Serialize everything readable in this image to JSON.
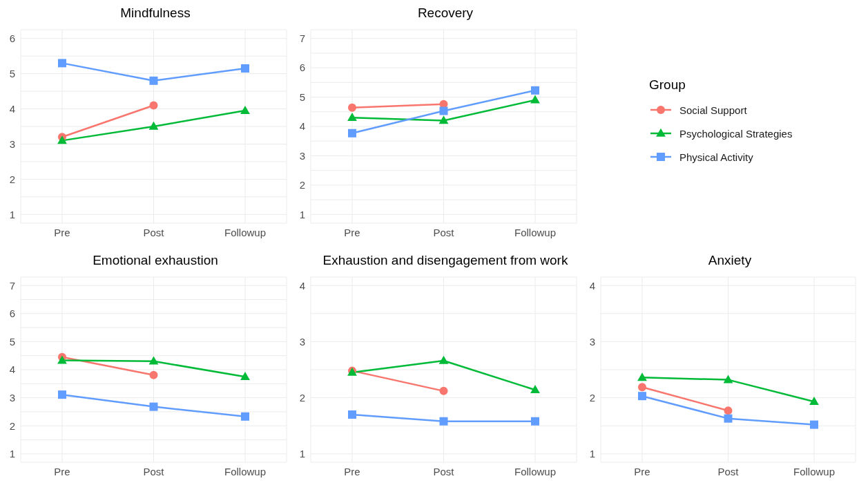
{
  "chart_data": [
    {
      "type": "line",
      "title": "Mindfulness",
      "categories": [
        "Pre",
        "Post",
        "Followup"
      ],
      "ylim": [
        0.75,
        6.25
      ],
      "yticks": [
        1,
        {
          "value": 1.5,
          "label": null
        },
        2,
        {
          "value": 2.5,
          "label": null
        },
        3,
        {
          "value": 3.5,
          "label": null
        },
        4,
        {
          "value": 4.5,
          "label": null
        },
        5,
        {
          "value": 5.5,
          "label": null
        },
        6
      ],
      "grid": true,
      "legend": "right",
      "legend_title": "Group",
      "series": [
        {
          "name": "Social Support",
          "color": "#f8766d",
          "marker": "circle",
          "values": [
            3.2,
            4.1,
            null
          ]
        },
        {
          "name": "Psychological Strategies",
          "color": "#00ba38",
          "marker": "triangle",
          "values": [
            3.1,
            3.5,
            3.95
          ]
        },
        {
          "name": "Physical Activity",
          "color": "#619cff",
          "marker": "square",
          "values": [
            5.3,
            4.8,
            5.15
          ]
        }
      ]
    },
    {
      "type": "line",
      "title": "Recovery",
      "categories": [
        "Pre",
        "Post",
        "Followup"
      ],
      "ylim": [
        0.7,
        7.3
      ],
      "yticks": [
        1,
        {
          "value": 1.5,
          "label": null
        },
        2,
        {
          "value": 2.5,
          "label": null
        },
        3,
        {
          "value": 3.5,
          "label": null
        },
        4,
        {
          "value": 4.5,
          "label": null
        },
        5,
        {
          "value": 5.5,
          "label": null
        },
        6,
        {
          "value": 6.5,
          "label": null
        },
        7
      ],
      "grid": true,
      "series": [
        {
          "color": "#f8766d",
          "marker": "circle",
          "values": [
            4.64,
            4.76,
            null
          ]
        },
        {
          "color": "#00ba38",
          "marker": "triangle",
          "values": [
            4.3,
            4.2,
            4.9
          ]
        },
        {
          "color": "#619cff",
          "marker": "square",
          "values": [
            3.77,
            4.53,
            5.23
          ]
        }
      ]
    },
    {
      "type": "line",
      "title": "Emotional exhaustion",
      "categories": [
        "Pre",
        "Post",
        "Followup"
      ],
      "ylim": [
        0.7,
        7.3
      ],
      "yticks": [
        1,
        {
          "value": 1.5,
          "label": null
        },
        2,
        {
          "value": 2.5,
          "label": null
        },
        3,
        {
          "value": 3.5,
          "label": null
        },
        4,
        {
          "value": 4.5,
          "label": null
        },
        5,
        {
          "value": 5.5,
          "label": null
        },
        6,
        {
          "value": 6.5,
          "label": null
        },
        7
      ],
      "grid": true,
      "series": [
        {
          "color": "#f8766d",
          "marker": "circle",
          "values": [
            4.45,
            3.81,
            null
          ]
        },
        {
          "color": "#00ba38",
          "marker": "triangle",
          "values": [
            4.33,
            4.3,
            3.75
          ]
        },
        {
          "color": "#619cff",
          "marker": "square",
          "values": [
            3.11,
            2.68,
            2.33
          ]
        }
      ]
    },
    {
      "type": "line",
      "title": "Exhaustion and disengagement from work",
      "categories": [
        "Pre",
        "Post",
        "Followup"
      ],
      "ylim": [
        0.85,
        4.15
      ],
      "yticks": [
        1,
        {
          "value": 1.5,
          "label": null
        },
        2,
        {
          "value": 2.5,
          "label": null
        },
        3,
        {
          "value": 3.5,
          "label": null
        },
        4
      ],
      "grid": true,
      "series": [
        {
          "color": "#f8766d",
          "marker": "circle",
          "values": [
            2.48,
            2.12,
            null
          ]
        },
        {
          "color": "#00ba38",
          "marker": "triangle",
          "values": [
            2.45,
            2.66,
            2.14
          ]
        },
        {
          "color": "#619cff",
          "marker": "square",
          "values": [
            1.7,
            1.58,
            1.58
          ]
        }
      ]
    },
    {
      "type": "line",
      "title": "Anxiety",
      "categories": [
        "Pre",
        "Post",
        "Followup"
      ],
      "ylim": [
        0.85,
        4.15
      ],
      "yticks": [
        1,
        {
          "value": 1.5,
          "label": null
        },
        2,
        {
          "value": 2.5,
          "label": null
        },
        3,
        {
          "value": 3.5,
          "label": null
        },
        4
      ],
      "grid": true,
      "series": [
        {
          "color": "#f8766d",
          "marker": "circle",
          "values": [
            2.19,
            1.77,
            null
          ]
        },
        {
          "color": "#00ba38",
          "marker": "triangle",
          "values": [
            2.36,
            2.32,
            1.93
          ]
        },
        {
          "color": "#619cff",
          "marker": "square",
          "values": [
            2.03,
            1.63,
            1.52
          ]
        }
      ]
    }
  ]
}
